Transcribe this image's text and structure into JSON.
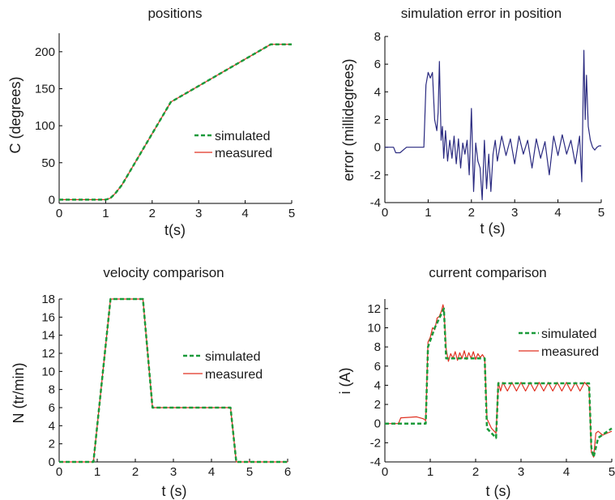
{
  "chart_data": [
    {
      "type": "line",
      "title": "positions",
      "xlabel": "t(s)",
      "ylabel": "C (degrees)",
      "xlim": [
        0,
        5
      ],
      "ylim": [
        -5,
        225
      ],
      "xticks": [
        0,
        1,
        2,
        3,
        4,
        5
      ],
      "yticks": [
        0,
        50,
        100,
        150,
        200
      ],
      "legend": "center-right",
      "grid": false,
      "series": [
        {
          "name": "simulated",
          "color": "#1a9a3a",
          "style": "dashed",
          "x": [
            0,
            1.0,
            1.1,
            1.2,
            1.35,
            2.4,
            4.55,
            5.0
          ],
          "y": [
            0,
            0,
            2,
            8,
            20,
            132,
            210,
            210
          ]
        },
        {
          "name": "measured",
          "color": "#e03020",
          "style": "solid",
          "x": [
            0,
            1.0,
            1.1,
            1.2,
            1.35,
            2.4,
            4.55,
            5.0
          ],
          "y": [
            0,
            0,
            2,
            8,
            20,
            132,
            210,
            210
          ]
        }
      ]
    },
    {
      "type": "line",
      "title": "simulation error in position",
      "xlabel": "t (s)",
      "ylabel": "error (millidegrees)",
      "xlim": [
        0,
        5
      ],
      "ylim": [
        -4,
        8
      ],
      "xticks": [
        0,
        1,
        2,
        3,
        4,
        5
      ],
      "yticks": [
        -4,
        -2,
        0,
        2,
        4,
        6,
        8
      ],
      "grid": false,
      "series": [
        {
          "color": "#2a2a80",
          "style": "solid",
          "x": [
            0.0,
            0.2,
            0.25,
            0.35,
            0.5,
            0.7,
            0.9,
            0.95,
            1.0,
            1.05,
            1.1,
            1.15,
            1.2,
            1.23,
            1.26,
            1.3,
            1.33,
            1.36,
            1.4,
            1.45,
            1.5,
            1.55,
            1.6,
            1.65,
            1.7,
            1.75,
            1.8,
            1.85,
            1.9,
            1.95,
            2.0,
            2.05,
            2.1,
            2.15,
            2.2,
            2.25,
            2.3,
            2.35,
            2.4,
            2.45,
            2.5,
            2.55,
            2.6,
            2.7,
            2.8,
            2.9,
            3.0,
            3.1,
            3.2,
            3.3,
            3.4,
            3.5,
            3.6,
            3.7,
            3.8,
            3.9,
            4.0,
            4.1,
            4.2,
            4.3,
            4.4,
            4.5,
            4.55,
            4.6,
            4.63,
            4.66,
            4.7,
            4.75,
            4.8,
            4.85,
            4.9,
            4.95,
            5.0
          ],
          "y": [
            0.0,
            0.0,
            -0.4,
            -0.4,
            0.0,
            0.0,
            0.0,
            4.5,
            5.4,
            5.0,
            5.4,
            2.0,
            1.2,
            2.5,
            6.2,
            0.5,
            1.5,
            -0.8,
            1.2,
            -1.0,
            0.5,
            -0.8,
            0.8,
            -1.2,
            0.6,
            -1.5,
            0.3,
            -0.5,
            0.5,
            -2.0,
            2.8,
            -3.2,
            0.3,
            -1.0,
            -1.5,
            -3.8,
            0.5,
            -3.0,
            -0.5,
            -3.2,
            -0.5,
            0.5,
            -1.0,
            0.8,
            -0.6,
            0.6,
            -1.2,
            0.8,
            -0.5,
            0.5,
            -1.5,
            0.6,
            -0.8,
            0.4,
            -2.0,
            0.8,
            -0.6,
            0.9,
            -0.5,
            0.5,
            -1.2,
            0.8,
            -2.5,
            7.0,
            2.0,
            5.2,
            1.5,
            0.5,
            0.0,
            -0.2,
            0.0,
            0.1,
            0.1
          ]
        }
      ]
    },
    {
      "type": "line",
      "title": "velocity comparison",
      "xlabel": "t (s)",
      "ylabel": "N (tr/min)",
      "xlim": [
        0,
        6
      ],
      "ylim": [
        0,
        18
      ],
      "xticks": [
        0,
        1,
        2,
        3,
        4,
        5,
        6
      ],
      "yticks": [
        0,
        2,
        4,
        6,
        8,
        10,
        12,
        14,
        16,
        18
      ],
      "legend": "center-right",
      "grid": false,
      "series": [
        {
          "name": "simulated",
          "color": "#1a9a3a",
          "style": "dashed",
          "x": [
            0,
            0.9,
            1.35,
            2.2,
            2.45,
            4.5,
            4.65,
            6.0
          ],
          "y": [
            0,
            0,
            18,
            18,
            6,
            6,
            0,
            0
          ]
        },
        {
          "name": "measured",
          "color": "#e03020",
          "style": "solid",
          "x": [
            0,
            0.9,
            1.35,
            2.2,
            2.45,
            4.5,
            4.65,
            6.0
          ],
          "y": [
            0,
            0,
            18,
            18,
            6,
            6,
            0,
            0
          ]
        }
      ]
    },
    {
      "type": "line",
      "title": "current comparison",
      "xlabel": "t (s)",
      "ylabel": "i (A)",
      "xlim": [
        0,
        5
      ],
      "ylim": [
        -4,
        13
      ],
      "xticks": [
        0,
        1,
        2,
        3,
        4,
        5
      ],
      "yticks": [
        -4,
        -2,
        0,
        2,
        4,
        6,
        8,
        10,
        12
      ],
      "legend": "top-right",
      "grid": false,
      "series": [
        {
          "name": "simulated",
          "color": "#1a9a3a",
          "style": "dashed",
          "x": [
            0,
            0.9,
            0.95,
            1.1,
            1.3,
            1.35,
            2.2,
            2.25,
            2.45,
            2.5,
            4.5,
            4.55,
            4.6,
            4.7,
            5.0
          ],
          "y": [
            0,
            0,
            8.0,
            10.0,
            12.0,
            6.8,
            6.8,
            -0.5,
            -1.5,
            4.2,
            4.2,
            -2.5,
            -3.5,
            -1.5,
            -0.5
          ]
        },
        {
          "name": "measured",
          "color": "#e03020",
          "style": "solid",
          "x": [
            0.0,
            0.3,
            0.35,
            0.7,
            0.85,
            0.9,
            0.95,
            1.0,
            1.05,
            1.1,
            1.15,
            1.2,
            1.25,
            1.28,
            1.3,
            1.35,
            1.4,
            1.45,
            1.5,
            1.55,
            1.6,
            1.65,
            1.7,
            1.75,
            1.8,
            1.85,
            1.9,
            1.95,
            2.0,
            2.05,
            2.1,
            2.15,
            2.2,
            2.25,
            2.35,
            2.45,
            2.5,
            2.55,
            2.6,
            2.7,
            2.8,
            2.9,
            3.0,
            3.1,
            3.2,
            3.3,
            3.4,
            3.5,
            3.6,
            3.7,
            3.8,
            3.9,
            4.0,
            4.1,
            4.2,
            4.3,
            4.4,
            4.5,
            4.55,
            4.6,
            4.65,
            4.7,
            4.8,
            4.9,
            5.0
          ],
          "y": [
            0.0,
            0.0,
            0.6,
            0.7,
            0.5,
            0.3,
            8.5,
            9.0,
            10.0,
            9.8,
            11.0,
            11.2,
            11.8,
            12.4,
            12.0,
            7.8,
            6.5,
            7.3,
            6.8,
            7.5,
            6.6,
            7.4,
            6.8,
            7.6,
            6.7,
            7.4,
            6.8,
            7.5,
            6.7,
            7.3,
            6.9,
            7.2,
            6.8,
            0.5,
            -0.5,
            -1.0,
            4.3,
            3.4,
            4.3,
            3.4,
            4.3,
            3.4,
            4.3,
            3.4,
            4.3,
            3.4,
            4.3,
            3.4,
            4.3,
            3.4,
            4.3,
            3.4,
            4.3,
            3.4,
            4.3,
            3.4,
            4.3,
            3.8,
            -3.0,
            -3.5,
            -1.0,
            -0.8,
            -1.2,
            -1.0,
            -0.8
          ]
        }
      ]
    }
  ]
}
